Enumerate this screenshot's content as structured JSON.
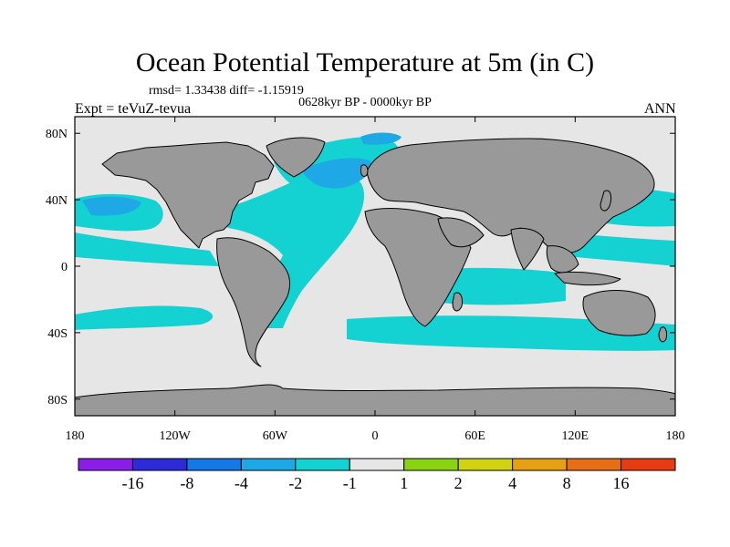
{
  "title": "Ocean Potential Temperature at 5m (in C)",
  "stats": "rmsd= 1.33438  diff= -1.15919",
  "period": "0628kyr BP - 0000kyr BP",
  "experiment": "Expt = teVuZ-tevua",
  "season": "ANN",
  "map": {
    "projection": "cylindrical-equidistant",
    "lon_range": [
      -180,
      180
    ],
    "lat_range": [
      -90,
      90
    ],
    "land_color": "#999999",
    "coast_color": "#000000",
    "lon_ticks": [
      "180",
      "120W",
      "60W",
      "0",
      "60E",
      "120E",
      "180"
    ],
    "lat_ticks": [
      "80N",
      "40N",
      "0",
      "40S",
      "80S"
    ],
    "lat_tick_values": [
      80,
      40,
      0,
      -40,
      -80
    ]
  },
  "colorbar": {
    "colors": [
      "#8a1ee6",
      "#2b2bd9",
      "#1478e6",
      "#1ea8e6",
      "#14d2d2",
      "#e6e6e6",
      "#8ad214",
      "#d2d214",
      "#e6a014",
      "#e66e14",
      "#e63c14"
    ],
    "labels": [
      "-16",
      "-8",
      "-4",
      "-2",
      "-1",
      "1",
      "2",
      "4",
      "8",
      "16"
    ]
  }
}
